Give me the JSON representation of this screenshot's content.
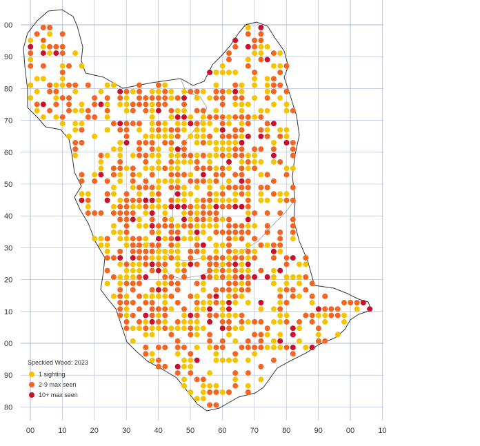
{
  "map": {
    "legend": {
      "title": "Speckled Wood:  2023",
      "items": [
        {
          "label": "1 sighting",
          "color": "#f5c400",
          "class": "one"
        },
        {
          "label": "2-9 max seen",
          "color": "#f26522",
          "class": "few"
        },
        {
          "label": "10+ max seen",
          "color": "#c8102e",
          "class": "many"
        }
      ]
    },
    "grid_color": "#a9b4d6",
    "boundary_color": "#333333",
    "subregion_color": "#999999",
    "x_axis_labels": [
      "00",
      "10",
      "20",
      "30",
      "40",
      "50",
      "60",
      "70",
      "80",
      "90",
      "00",
      "10"
    ],
    "y_axis_labels": [
      "00",
      "90",
      "80",
      "70",
      "60",
      "50",
      "40",
      "30",
      "20",
      "10",
      "00",
      "90",
      "80"
    ]
  }
}
